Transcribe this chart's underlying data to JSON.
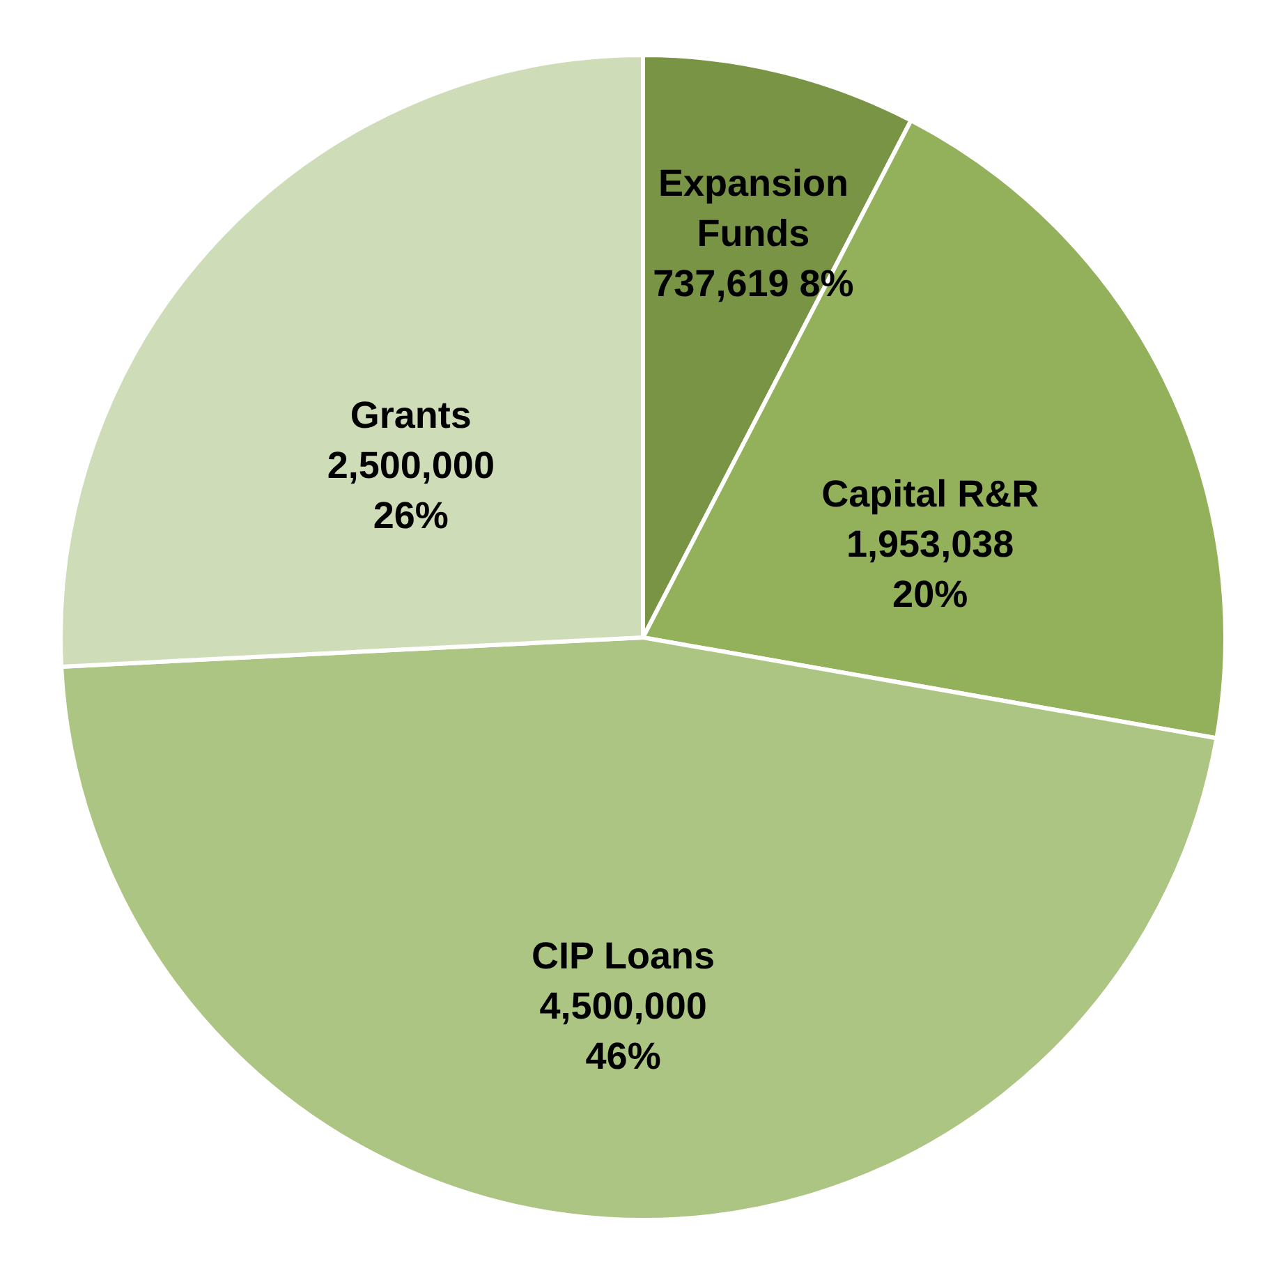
{
  "chart_data": {
    "type": "pie",
    "categories": [
      "Expansion Funds",
      "Capital R&R",
      "CIP Loans",
      "Grants"
    ],
    "values": [
      737619,
      1953038,
      4500000,
      2500000
    ],
    "colors": [
      "#7a9445",
      "#93b15a",
      "#adc583",
      "#cfdcb8"
    ],
    "value_labels": [
      "737,619  8%",
      "1,953,038\n20%",
      "4,500,000\n46%",
      "2,500,000\n26%"
    ]
  }
}
